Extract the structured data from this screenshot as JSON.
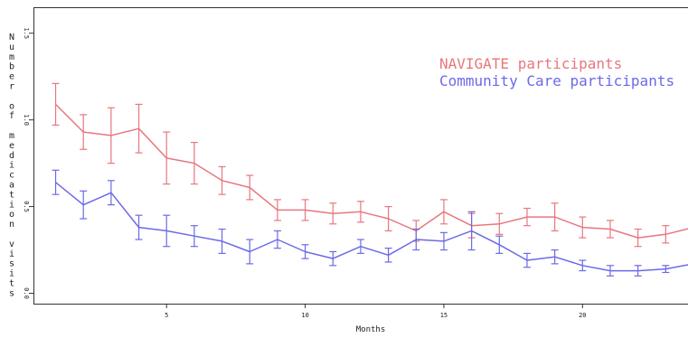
{
  "chart_data": {
    "type": "line",
    "title": "",
    "xlabel": "Months",
    "ylabel": "Number of medication visits",
    "xlim": [
      0.2,
      24
    ],
    "ylim": [
      -0.06,
      1.65
    ],
    "x_ticks": [
      5,
      10,
      15,
      20
    ],
    "y_ticks": [
      0.0,
      0.5,
      1.0,
      1.5
    ],
    "y_tick_labels": [
      "0.0",
      "0.5",
      "1.0",
      "1.5"
    ],
    "legend_position": "top-right",
    "grid": false,
    "x": [
      1,
      2,
      3,
      4,
      5,
      6,
      7,
      8,
      9,
      10,
      11,
      12,
      13,
      14,
      15,
      16,
      17,
      18,
      19,
      20,
      21,
      22,
      23,
      24
    ],
    "series": [
      {
        "name": "NAVIGATE participants",
        "color": "#e8777e",
        "values": [
          1.09,
          0.93,
          0.91,
          0.95,
          0.78,
          0.75,
          0.65,
          0.61,
          0.48,
          0.48,
          0.46,
          0.47,
          0.43,
          0.36,
          0.47,
          0.39,
          0.4,
          0.44,
          0.44,
          0.38,
          0.37,
          0.32,
          0.34,
          0.38
        ],
        "err": [
          0.12,
          0.1,
          0.16,
          0.14,
          0.15,
          0.12,
          0.08,
          0.07,
          0.06,
          0.06,
          0.06,
          0.06,
          0.07,
          0.06,
          0.07,
          0.07,
          0.06,
          0.05,
          0.08,
          0.06,
          0.05,
          0.05,
          0.05,
          0.05
        ]
      },
      {
        "name": "Community Care participants",
        "color": "#6a6ae8",
        "values": [
          0.64,
          0.51,
          0.58,
          0.38,
          0.36,
          0.33,
          0.3,
          0.24,
          0.31,
          0.24,
          0.2,
          0.27,
          0.22,
          0.31,
          0.3,
          0.36,
          0.28,
          0.19,
          0.21,
          0.16,
          0.13,
          0.13,
          0.14,
          0.17
        ],
        "err": [
          0.07,
          0.08,
          0.07,
          0.07,
          0.09,
          0.06,
          0.07,
          0.07,
          0.05,
          0.04,
          0.04,
          0.04,
          0.04,
          0.06,
          0.05,
          0.11,
          0.05,
          0.04,
          0.04,
          0.03,
          0.03,
          0.03,
          0.02,
          0.02
        ]
      }
    ]
  }
}
